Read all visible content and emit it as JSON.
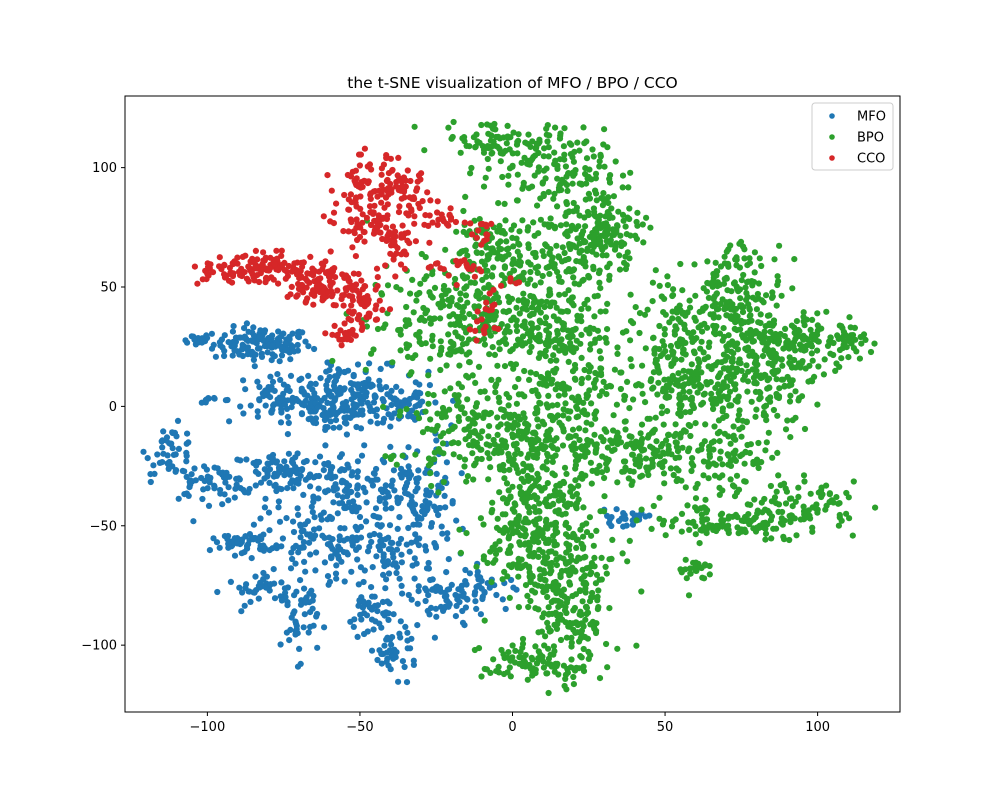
{
  "chart_data": {
    "type": "scatter",
    "title": "the t-SNE visualization of MFO / BPO / CCO",
    "xlabel": "",
    "ylabel": "",
    "xlim": [
      -127,
      127
    ],
    "ylim": [
      -128,
      130
    ],
    "xticks": [
      -100,
      -50,
      0,
      50,
      100
    ],
    "xtick_labels": [
      "−100",
      "−50",
      "0",
      "50",
      "100"
    ],
    "yticks": [
      -100,
      -50,
      0,
      50,
      100
    ],
    "ytick_labels": [
      "−100",
      "−50",
      "0",
      "50",
      "100"
    ],
    "grid": false,
    "legend_position": "top-right",
    "series": [
      {
        "name": "MFO",
        "color": "#1f77b4",
        "clusters": [
          {
            "cx": -82,
            "cy": 26,
            "sx": 8,
            "sy": 3.5,
            "n": 130
          },
          {
            "cx": -104,
            "cy": 28,
            "sx": 3,
            "sy": 1.2,
            "n": 14
          },
          {
            "cx": -100,
            "cy": 3,
            "sx": 2,
            "sy": 1.2,
            "n": 8
          },
          {
            "cx": -50,
            "cy": 4,
            "sx": 11,
            "sy": 6,
            "n": 170
          },
          {
            "cx": -75,
            "cy": 3,
            "sx": 9,
            "sy": 5,
            "n": 80
          },
          {
            "cx": -60,
            "cy": -4,
            "sx": 6,
            "sy": 3,
            "n": 50
          },
          {
            "cx": -34,
            "cy": 0,
            "sx": 3,
            "sy": 3,
            "n": 25
          },
          {
            "cx": -112,
            "cy": -18,
            "sx": 4,
            "sy": 5,
            "n": 40
          },
          {
            "cx": -100,
            "cy": -32,
            "sx": 8,
            "sy": 4,
            "n": 60
          },
          {
            "cx": -75,
            "cy": -28,
            "sx": 9,
            "sy": 5,
            "n": 90
          },
          {
            "cx": -55,
            "cy": -35,
            "sx": 10,
            "sy": 8,
            "n": 120
          },
          {
            "cx": -30,
            "cy": -40,
            "sx": 6,
            "sy": 12,
            "n": 110
          },
          {
            "cx": -88,
            "cy": -57,
            "sx": 5,
            "sy": 2.5,
            "n": 45
          },
          {
            "cx": -62,
            "cy": -58,
            "sx": 12,
            "sy": 7,
            "n": 110
          },
          {
            "cx": -40,
            "cy": -63,
            "sx": 7,
            "sy": 6,
            "n": 60
          },
          {
            "cx": -80,
            "cy": -77,
            "sx": 7,
            "sy": 3,
            "n": 40
          },
          {
            "cx": -70,
            "cy": -90,
            "sx": 3,
            "sy": 8,
            "n": 40
          },
          {
            "cx": -46,
            "cy": -88,
            "sx": 4,
            "sy": 6,
            "n": 40
          },
          {
            "cx": -39,
            "cy": -103,
            "sx": 4,
            "sy": 5,
            "n": 40
          },
          {
            "cx": -23,
            "cy": -82,
            "sx": 7,
            "sy": 7,
            "n": 65
          },
          {
            "cx": -10,
            "cy": -76,
            "sx": 5,
            "sy": 4,
            "n": 35
          },
          {
            "cx": 36,
            "cy": -47,
            "sx": 4,
            "sy": 1.5,
            "n": 25
          },
          {
            "cx": -57,
            "cy": 15,
            "sx": 3,
            "sy": 2,
            "n": 10
          }
        ]
      },
      {
        "name": "BPO",
        "color": "#2ca02c",
        "clusters": [
          {
            "cx": -5,
            "cy": 112,
            "sx": 9,
            "sy": 4,
            "n": 70
          },
          {
            "cx": 10,
            "cy": 100,
            "sx": 10,
            "sy": 8,
            "n": 110
          },
          {
            "cx": 25,
            "cy": 80,
            "sx": 9,
            "sy": 12,
            "n": 140
          },
          {
            "cx": 30,
            "cy": 70,
            "sx": 6,
            "sy": 6,
            "n": 60
          },
          {
            "cx": 5,
            "cy": 60,
            "sx": 15,
            "sy": 10,
            "n": 170
          },
          {
            "cx": -20,
            "cy": 35,
            "sx": 14,
            "sy": 12,
            "n": 230
          },
          {
            "cx": -10,
            "cy": 70,
            "sx": 6,
            "sy": 5,
            "n": 45
          },
          {
            "cx": 10,
            "cy": 35,
            "sx": 12,
            "sy": 9,
            "n": 160
          },
          {
            "cx": 20,
            "cy": 10,
            "sx": 10,
            "sy": 10,
            "n": 150
          },
          {
            "cx": -13,
            "cy": -10,
            "sx": 10,
            "sy": 11,
            "n": 180
          },
          {
            "cx": 5,
            "cy": -15,
            "sx": 6,
            "sy": 10,
            "n": 70
          },
          {
            "cx": 25,
            "cy": -20,
            "sx": 10,
            "sy": 6,
            "n": 100
          },
          {
            "cx": 12,
            "cy": -40,
            "sx": 8,
            "sy": 6,
            "n": 80
          },
          {
            "cx": 5,
            "cy": -50,
            "sx": 8,
            "sy": 10,
            "n": 150
          },
          {
            "cx": 15,
            "cy": -70,
            "sx": 10,
            "sy": 10,
            "n": 180
          },
          {
            "cx": 20,
            "cy": -90,
            "sx": 6,
            "sy": 8,
            "n": 90
          },
          {
            "cx": 8,
            "cy": -108,
            "sx": 9,
            "sy": 5,
            "n": 100
          },
          {
            "cx": 60,
            "cy": 30,
            "sx": 10,
            "sy": 12,
            "n": 180
          },
          {
            "cx": 75,
            "cy": 45,
            "sx": 7,
            "sy": 12,
            "n": 150
          },
          {
            "cx": 95,
            "cy": 28,
            "sx": 10,
            "sy": 6,
            "n": 130
          },
          {
            "cx": 80,
            "cy": 10,
            "sx": 10,
            "sy": 9,
            "n": 160
          },
          {
            "cx": 55,
            "cy": 5,
            "sx": 9,
            "sy": 9,
            "n": 130
          },
          {
            "cx": 45,
            "cy": -20,
            "sx": 8,
            "sy": 7,
            "n": 100
          },
          {
            "cx": 70,
            "cy": -20,
            "sx": 10,
            "sy": 8,
            "n": 100
          },
          {
            "cx": 65,
            "cy": -48,
            "sx": 9,
            "sy": 4,
            "n": 70
          },
          {
            "cx": 80,
            "cy": -50,
            "sx": 6,
            "sy": 4,
            "n": 45
          },
          {
            "cx": 97,
            "cy": -42,
            "sx": 8,
            "sy": 5,
            "n": 80
          },
          {
            "cx": 60,
            "cy": -68,
            "sx": 3,
            "sy": 2,
            "n": 25
          },
          {
            "cx": 110,
            "cy": 28,
            "sx": 2,
            "sy": 3,
            "n": 20
          },
          {
            "cx": -38,
            "cy": -22,
            "sx": 2,
            "sy": 1.5,
            "n": 6
          }
        ]
      },
      {
        "name": "CCO",
        "color": "#d62728",
        "clusters": [
          {
            "cx": -48,
            "cy": 93,
            "sx": 5,
            "sy": 6,
            "n": 55
          },
          {
            "cx": -36,
            "cy": 90,
            "sx": 5,
            "sy": 5,
            "n": 55
          },
          {
            "cx": -47,
            "cy": 75,
            "sx": 5,
            "sy": 6,
            "n": 60
          },
          {
            "cx": -38,
            "cy": 68,
            "sx": 3,
            "sy": 6,
            "n": 40
          },
          {
            "cx": -95,
            "cy": 56,
            "sx": 5,
            "sy": 2.5,
            "n": 40
          },
          {
            "cx": -78,
            "cy": 58,
            "sx": 8,
            "sy": 3,
            "n": 90
          },
          {
            "cx": -62,
            "cy": 52,
            "sx": 6,
            "sy": 5,
            "n": 90
          },
          {
            "cx": -50,
            "cy": 42,
            "sx": 4,
            "sy": 5,
            "n": 60
          },
          {
            "cx": -55,
            "cy": 30,
            "sx": 3,
            "sy": 1.5,
            "n": 18
          },
          {
            "cx": -23,
            "cy": 78,
            "sx": 3,
            "sy": 2,
            "n": 20
          },
          {
            "cx": -10,
            "cy": 72,
            "sx": 3,
            "sy": 3,
            "n": 15
          },
          {
            "cx": -15,
            "cy": 58,
            "sx": 4,
            "sy": 3,
            "n": 15
          },
          {
            "cx": -10,
            "cy": 32,
            "sx": 3,
            "sy": 3,
            "n": 12
          },
          {
            "cx": -6,
            "cy": 44,
            "sx": 3,
            "sy": 2,
            "n": 8
          },
          {
            "cx": -26,
            "cy": 59,
            "sx": 2,
            "sy": 1,
            "n": 6
          },
          {
            "cx": -2,
            "cy": 52,
            "sx": 2,
            "sy": 2,
            "n": 5
          }
        ]
      }
    ]
  }
}
